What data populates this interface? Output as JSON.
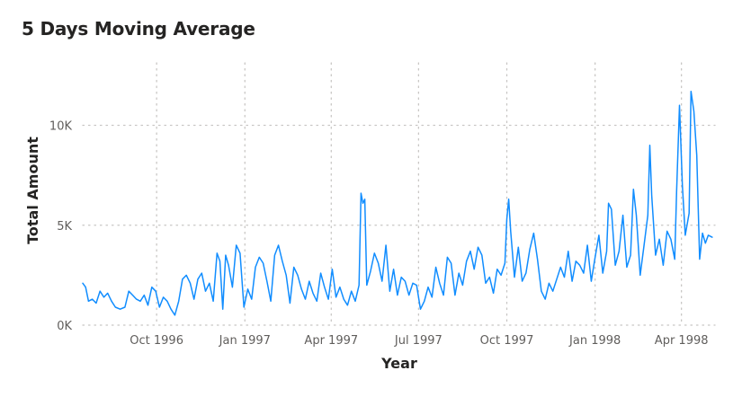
{
  "chart_data": {
    "type": "line",
    "title": "5 Days Moving Average",
    "xlabel": "Year",
    "ylabel": "Total Amount",
    "x_start": "1996-07-16",
    "x_end": "1998-05-06",
    "ylim": [
      0,
      12000
    ],
    "y_ticks": [
      {
        "value": 0,
        "label": "0K"
      },
      {
        "value": 5000,
        "label": "5K"
      },
      {
        "value": 10000,
        "label": "10K"
      }
    ],
    "x_ticks": [
      {
        "date": "1996-10-01",
        "label": "Oct 1996"
      },
      {
        "date": "1997-01-01",
        "label": "Jan 1997"
      },
      {
        "date": "1997-04-01",
        "label": "Apr 1997"
      },
      {
        "date": "1997-07-01",
        "label": "Jul 1997"
      },
      {
        "date": "1997-10-01",
        "label": "Oct 1997"
      },
      {
        "date": "1998-01-01",
        "label": "Jan 1998"
      },
      {
        "date": "1998-04-01",
        "label": "Apr 1998"
      }
    ],
    "grid": true,
    "line_color": "#118DFF",
    "series": [
      {
        "name": "",
        "points": [
          [
            "1996-07-16",
            2100
          ],
          [
            "1996-07-19",
            1900
          ],
          [
            "1996-07-22",
            1200
          ],
          [
            "1996-07-26",
            1300
          ],
          [
            "1996-07-30",
            1100
          ],
          [
            "1996-08-03",
            1700
          ],
          [
            "1996-08-07",
            1400
          ],
          [
            "1996-08-11",
            1600
          ],
          [
            "1996-08-15",
            1200
          ],
          [
            "1996-08-19",
            900
          ],
          [
            "1996-08-24",
            800
          ],
          [
            "1996-08-29",
            900
          ],
          [
            "1996-09-02",
            1700
          ],
          [
            "1996-09-06",
            1500
          ],
          [
            "1996-09-10",
            1300
          ],
          [
            "1996-09-14",
            1200
          ],
          [
            "1996-09-18",
            1500
          ],
          [
            "1996-09-22",
            1000
          ],
          [
            "1996-09-26",
            1900
          ],
          [
            "1996-09-30",
            1700
          ],
          [
            "1996-10-04",
            900
          ],
          [
            "1996-10-08",
            1400
          ],
          [
            "1996-10-12",
            1200
          ],
          [
            "1996-10-16",
            800
          ],
          [
            "1996-10-20",
            500
          ],
          [
            "1996-10-24",
            1200
          ],
          [
            "1996-10-28",
            2300
          ],
          [
            "1996-11-01",
            2500
          ],
          [
            "1996-11-05",
            2100
          ],
          [
            "1996-11-09",
            1300
          ],
          [
            "1996-11-13",
            2300
          ],
          [
            "1996-11-17",
            2600
          ],
          [
            "1996-11-21",
            1700
          ],
          [
            "1996-11-25",
            2100
          ],
          [
            "1996-11-29",
            1200
          ],
          [
            "1996-12-03",
            3600
          ],
          [
            "1996-12-06",
            3200
          ],
          [
            "1996-12-09",
            800
          ],
          [
            "1996-12-12",
            3500
          ],
          [
            "1996-12-15",
            3000
          ],
          [
            "1996-12-19",
            1900
          ],
          [
            "1996-12-23",
            4000
          ],
          [
            "1996-12-27",
            3600
          ],
          [
            "1996-12-31",
            900
          ],
          [
            "1997-01-04",
            1800
          ],
          [
            "1997-01-08",
            1300
          ],
          [
            "1997-01-12",
            2900
          ],
          [
            "1997-01-16",
            3400
          ],
          [
            "1997-01-20",
            3100
          ],
          [
            "1997-01-24",
            2200
          ],
          [
            "1997-01-28",
            1200
          ],
          [
            "1997-02-01",
            3500
          ],
          [
            "1997-02-05",
            4000
          ],
          [
            "1997-02-09",
            3200
          ],
          [
            "1997-02-13",
            2500
          ],
          [
            "1997-02-17",
            1100
          ],
          [
            "1997-02-21",
            2900
          ],
          [
            "1997-02-25",
            2500
          ],
          [
            "1997-03-01",
            1800
          ],
          [
            "1997-03-05",
            1300
          ],
          [
            "1997-03-09",
            2200
          ],
          [
            "1997-03-13",
            1600
          ],
          [
            "1997-03-17",
            1200
          ],
          [
            "1997-03-21",
            2600
          ],
          [
            "1997-03-25",
            1900
          ],
          [
            "1997-03-29",
            1300
          ],
          [
            "1997-04-02",
            2800
          ],
          [
            "1997-04-06",
            1400
          ],
          [
            "1997-04-10",
            1900
          ],
          [
            "1997-04-14",
            1300
          ],
          [
            "1997-04-18",
            1000
          ],
          [
            "1997-04-22",
            1700
          ],
          [
            "1997-04-26",
            1200
          ],
          [
            "1997-04-30",
            2000
          ],
          [
            "1997-05-02",
            6600
          ],
          [
            "1997-05-04",
            6100
          ],
          [
            "1997-05-06",
            6300
          ],
          [
            "1997-05-08",
            2000
          ],
          [
            "1997-05-12",
            2700
          ],
          [
            "1997-05-16",
            3600
          ],
          [
            "1997-05-20",
            3100
          ],
          [
            "1997-05-24",
            2200
          ],
          [
            "1997-05-28",
            4000
          ],
          [
            "1997-06-01",
            1700
          ],
          [
            "1997-06-05",
            2800
          ],
          [
            "1997-06-09",
            1500
          ],
          [
            "1997-06-13",
            2400
          ],
          [
            "1997-06-17",
            2200
          ],
          [
            "1997-06-21",
            1500
          ],
          [
            "1997-06-25",
            2100
          ],
          [
            "1997-06-29",
            2000
          ],
          [
            "1997-07-03",
            800
          ],
          [
            "1997-07-07",
            1200
          ],
          [
            "1997-07-11",
            1900
          ],
          [
            "1997-07-15",
            1400
          ],
          [
            "1997-07-19",
            2900
          ],
          [
            "1997-07-23",
            2100
          ],
          [
            "1997-07-27",
            1500
          ],
          [
            "1997-07-31",
            3400
          ],
          [
            "1997-08-04",
            3100
          ],
          [
            "1997-08-08",
            1500
          ],
          [
            "1997-08-12",
            2600
          ],
          [
            "1997-08-16",
            2000
          ],
          [
            "1997-08-20",
            3200
          ],
          [
            "1997-08-24",
            3700
          ],
          [
            "1997-08-28",
            2800
          ],
          [
            "1997-09-01",
            3900
          ],
          [
            "1997-09-05",
            3500
          ],
          [
            "1997-09-09",
            2100
          ],
          [
            "1997-09-13",
            2400
          ],
          [
            "1997-09-17",
            1600
          ],
          [
            "1997-09-21",
            2800
          ],
          [
            "1997-09-25",
            2500
          ],
          [
            "1997-09-29",
            3100
          ],
          [
            "1997-10-01",
            5300
          ],
          [
            "1997-10-03",
            6300
          ],
          [
            "1997-10-05",
            4700
          ],
          [
            "1997-10-09",
            2400
          ],
          [
            "1997-10-13",
            3900
          ],
          [
            "1997-10-17",
            2200
          ],
          [
            "1997-10-21",
            2600
          ],
          [
            "1997-10-25",
            3800
          ],
          [
            "1997-10-29",
            4600
          ],
          [
            "1997-11-02",
            3300
          ],
          [
            "1997-11-06",
            1700
          ],
          [
            "1997-11-10",
            1300
          ],
          [
            "1997-11-14",
            2100
          ],
          [
            "1997-11-18",
            1700
          ],
          [
            "1997-11-22",
            2300
          ],
          [
            "1997-11-26",
            2900
          ],
          [
            "1997-11-30",
            2400
          ],
          [
            "1997-12-04",
            3700
          ],
          [
            "1997-12-08",
            2200
          ],
          [
            "1997-12-12",
            3200
          ],
          [
            "1997-12-16",
            3000
          ],
          [
            "1997-12-20",
            2600
          ],
          [
            "1997-12-24",
            4000
          ],
          [
            "1997-12-28",
            2200
          ],
          [
            "1998-01-01",
            3400
          ],
          [
            "1998-01-05",
            4500
          ],
          [
            "1998-01-09",
            2600
          ],
          [
            "1998-01-13",
            3700
          ],
          [
            "1998-01-15",
            6100
          ],
          [
            "1998-01-18",
            5800
          ],
          [
            "1998-01-22",
            3000
          ],
          [
            "1998-01-26",
            3700
          ],
          [
            "1998-01-30",
            5500
          ],
          [
            "1998-02-03",
            2900
          ],
          [
            "1998-02-07",
            3500
          ],
          [
            "1998-02-10",
            6800
          ],
          [
            "1998-02-13",
            5500
          ],
          [
            "1998-02-17",
            2500
          ],
          [
            "1998-02-21",
            4000
          ],
          [
            "1998-02-25",
            5500
          ],
          [
            "1998-02-27",
            9000
          ],
          [
            "1998-03-01",
            6500
          ],
          [
            "1998-03-05",
            3500
          ],
          [
            "1998-03-09",
            4300
          ],
          [
            "1998-03-13",
            3000
          ],
          [
            "1998-03-17",
            4700
          ],
          [
            "1998-03-21",
            4300
          ],
          [
            "1998-03-25",
            3300
          ],
          [
            "1998-03-27",
            6700
          ],
          [
            "1998-03-30",
            11000
          ],
          [
            "1998-04-02",
            7000
          ],
          [
            "1998-04-05",
            4500
          ],
          [
            "1998-04-09",
            5600
          ],
          [
            "1998-04-11",
            11700
          ],
          [
            "1998-04-14",
            10700
          ],
          [
            "1998-04-17",
            8500
          ],
          [
            "1998-04-20",
            3300
          ],
          [
            "1998-04-23",
            4600
          ],
          [
            "1998-04-26",
            4100
          ],
          [
            "1998-04-29",
            4500
          ],
          [
            "1998-05-03",
            4400
          ]
        ]
      }
    ]
  }
}
